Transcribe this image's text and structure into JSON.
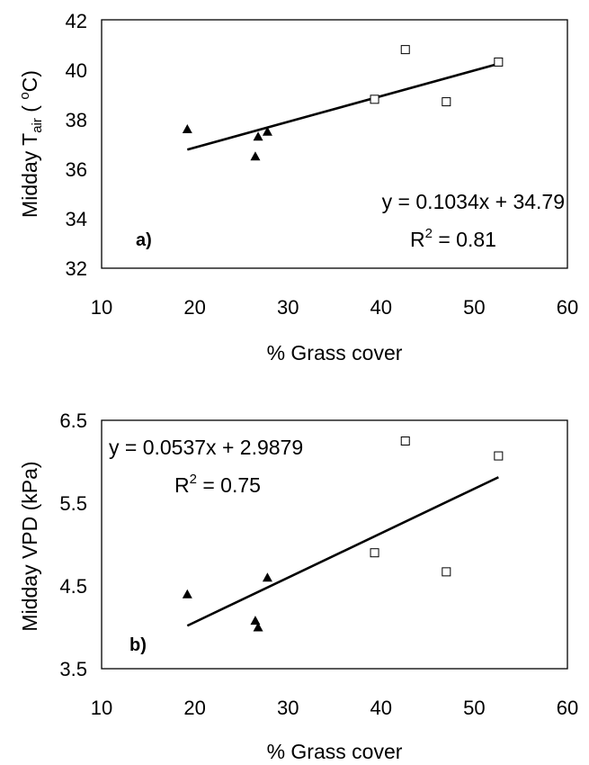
{
  "chart_data": [
    {
      "type": "scatter",
      "panel_label": "a)",
      "xlabel": "% Grass cover",
      "ylabel": {
        "prefix": "Midday T",
        "subscript": "air",
        "suffix_open": " ( ",
        "superscript": "o",
        "suffix_close": "C)"
      },
      "xlim": [
        10,
        60
      ],
      "ylim": [
        32,
        42
      ],
      "x_ticks": [
        10,
        20,
        30,
        40,
        50,
        60
      ],
      "y_ticks": [
        32,
        34,
        36,
        38,
        40,
        42
      ],
      "y_tick_labels": [
        "32",
        "34",
        "36",
        "38",
        "40",
        "42"
      ],
      "grid": false,
      "legend": "none",
      "series": [
        {
          "marker": "filled-triangle",
          "color": "#000000",
          "points": [
            [
              19.2,
              37.6
            ],
            [
              26.5,
              36.5
            ],
            [
              26.8,
              37.3
            ],
            [
              27.8,
              37.5
            ]
          ]
        },
        {
          "marker": "open-square",
          "color": "#000000",
          "points": [
            [
              39.3,
              38.8
            ],
            [
              42.6,
              40.8
            ],
            [
              47.0,
              38.7
            ],
            [
              52.6,
              40.3
            ]
          ]
        }
      ],
      "trendline": {
        "slope": 0.1034,
        "intercept": 34.79,
        "x_range": [
          19.2,
          52.6
        ]
      },
      "annotations": {
        "equation": "y = 0.1034x + 34.79",
        "r2_prefix": "R",
        "r2_sup": "2",
        "r2_value": " = 0.81"
      }
    },
    {
      "type": "scatter",
      "panel_label": "b)",
      "xlabel": "% Grass cover",
      "ylabel": {
        "text": "Midday VPD (kPa)"
      },
      "xlim": [
        10,
        60
      ],
      "ylim": [
        3.5,
        6.5
      ],
      "x_ticks": [
        10,
        20,
        30,
        40,
        50,
        60
      ],
      "y_ticks": [
        3.5,
        4.5,
        5.5,
        6.5
      ],
      "y_tick_labels": [
        "3.5",
        "4.5",
        "5.5",
        "6.5"
      ],
      "grid": false,
      "legend": "none",
      "series": [
        {
          "marker": "filled-triangle",
          "color": "#000000",
          "points": [
            [
              19.2,
              4.4
            ],
            [
              26.5,
              4.08
            ],
            [
              26.8,
              4.0
            ],
            [
              27.8,
              4.6
            ]
          ]
        },
        {
          "marker": "open-square",
          "color": "#000000",
          "points": [
            [
              39.3,
              4.9
            ],
            [
              42.6,
              6.25
            ],
            [
              47.0,
              4.67
            ],
            [
              52.6,
              6.07
            ]
          ]
        }
      ],
      "trendline": {
        "slope": 0.0537,
        "intercept": 2.9879,
        "x_range": [
          19.2,
          52.6
        ]
      },
      "annotations": {
        "equation": "y = 0.0537x + 2.9879",
        "r2_prefix": "R",
        "r2_sup": "2",
        "r2_value": " = 0.75"
      }
    }
  ]
}
